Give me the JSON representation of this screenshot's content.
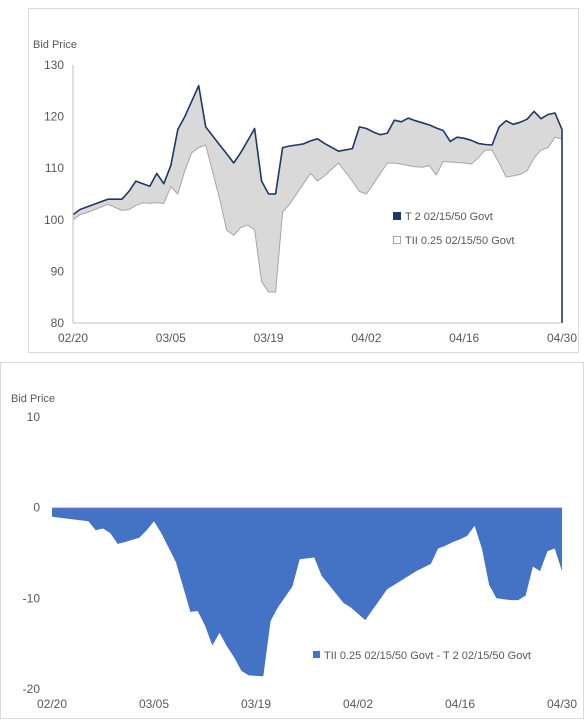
{
  "colors": {
    "t2_line": "#1F3864",
    "fill_between": "#D9D9D9",
    "tii_line": "#A6A6A6",
    "spread_fill": "#4472C4",
    "axis": "#BFBFBF",
    "border": "#D9D9D9",
    "text": "#595959"
  },
  "chart_data": [
    {
      "type": "area",
      "ylabel": "Bid Price",
      "ylim": [
        80,
        130
      ],
      "yticks": [
        "80",
        "90",
        "100",
        "110",
        "120",
        "130"
      ],
      "xticks": [
        "02/20",
        "03/05",
        "03/19",
        "04/02",
        "04/16",
        "04/30"
      ],
      "xlim": [
        0,
        70
      ],
      "grid": false,
      "legend": "right",
      "x": [
        0,
        1,
        2,
        5,
        7,
        8,
        9,
        10,
        11,
        12,
        13,
        14,
        15,
        16,
        17,
        18,
        19,
        21,
        22,
        23,
        24,
        25,
        26,
        27,
        28,
        29,
        30,
        31,
        32,
        33,
        34,
        35,
        36,
        38,
        40,
        41,
        42,
        43,
        44,
        45,
        46,
        47,
        48,
        49,
        50,
        51,
        52,
        53,
        54,
        55,
        56,
        57,
        58,
        59,
        60,
        61,
        62,
        63,
        64,
        65,
        66,
        67,
        68,
        69,
        70
      ],
      "series": [
        {
          "name": "T 2 02/15/50 Govt",
          "values": [
            101,
            102,
            102.5,
            104,
            104,
            105.5,
            107.5,
            107,
            106.5,
            109,
            107,
            110.5,
            117.5,
            120,
            123,
            126,
            118,
            114.5,
            112.8,
            111,
            113,
            115.3,
            117.7,
            107.5,
            105,
            105,
            114,
            114.3,
            114.5,
            114.7,
            115.3,
            115.7,
            114.8,
            113.3,
            113.8,
            118,
            117.7,
            117,
            116.5,
            116.8,
            119.3,
            119,
            119.7,
            119.2,
            118.8,
            118.4,
            117.8,
            117.3,
            115.2,
            116,
            115.8,
            115.4,
            114.8,
            114.6,
            114.5,
            118,
            119.2,
            118.5,
            118.9,
            119.5,
            121,
            119.6,
            120.4,
            120.7,
            117.5
          ]
        },
        {
          "name": "TII 0.25 02/15/50 Govt",
          "values": [
            100,
            101,
            101.4,
            103,
            101.8,
            102,
            102.8,
            103.3,
            103.2,
            103.3,
            103.2,
            106.4,
            105,
            109.5,
            113,
            114,
            114.5,
            104,
            98,
            97,
            98.5,
            99,
            98,
            88,
            86,
            86,
            101.5,
            103,
            105,
            107,
            109,
            107.5,
            108.5,
            111,
            107.5,
            105.5,
            105,
            107,
            109,
            111,
            111,
            110.8,
            110.5,
            110.3,
            110.2,
            110.5,
            108.7,
            111.3,
            111.2,
            111.1,
            111,
            110.8,
            112,
            113.5,
            113.5,
            111,
            108.3,
            108.5,
            108.8,
            109.5,
            112,
            113.5,
            114,
            116,
            115.6
          ]
        }
      ]
    },
    {
      "type": "area",
      "ylabel": "Bid Price",
      "ylim": [
        -20,
        10
      ],
      "yticks": [
        "-20",
        "-10",
        "0",
        "10"
      ],
      "xticks": [
        "02/20",
        "03/05",
        "03/19",
        "04/02",
        "04/16",
        "04/30"
      ],
      "xlim": [
        0,
        70
      ],
      "grid": false,
      "legend": "bottom-right",
      "x": [
        0,
        3,
        5,
        6,
        7,
        8,
        9,
        10,
        12,
        13,
        14,
        15,
        17,
        19,
        20,
        21,
        22,
        23,
        24,
        25,
        26,
        27,
        29,
        30,
        31,
        33,
        34,
        36,
        37,
        38,
        39,
        40,
        41,
        43,
        46,
        48,
        50,
        52,
        53,
        54,
        55,
        56,
        57,
        58,
        59,
        60,
        61,
        62,
        63,
        64,
        65,
        66,
        67,
        68,
        69,
        70
      ],
      "series": [
        {
          "name": "TII 0.25 02/15/50 Govt - T 2 02/15/50 Govt",
          "values": [
            -1,
            -1.3,
            -1.5,
            -2.5,
            -2.3,
            -2.8,
            -4,
            -3.8,
            -3.3,
            -2.5,
            -1.5,
            -2.8,
            -6,
            -11.5,
            -11.4,
            -13,
            -15.2,
            -13.8,
            -15.3,
            -16.5,
            -18,
            -18.5,
            -18.6,
            -12.5,
            -11,
            -8.7,
            -5.7,
            -5.5,
            -7.5,
            -8.5,
            -9.5,
            -10.5,
            -11,
            -12.4,
            -9,
            -8,
            -7,
            -6.2,
            -4.5,
            -4.2,
            -3.8,
            -3.5,
            -3.1,
            -2,
            -4.5,
            -8.5,
            -10,
            -10.1,
            -10.2,
            -10.2,
            -9.7,
            -6.5,
            -7,
            -4.8,
            -4.5,
            -7
          ]
        }
      ]
    }
  ]
}
